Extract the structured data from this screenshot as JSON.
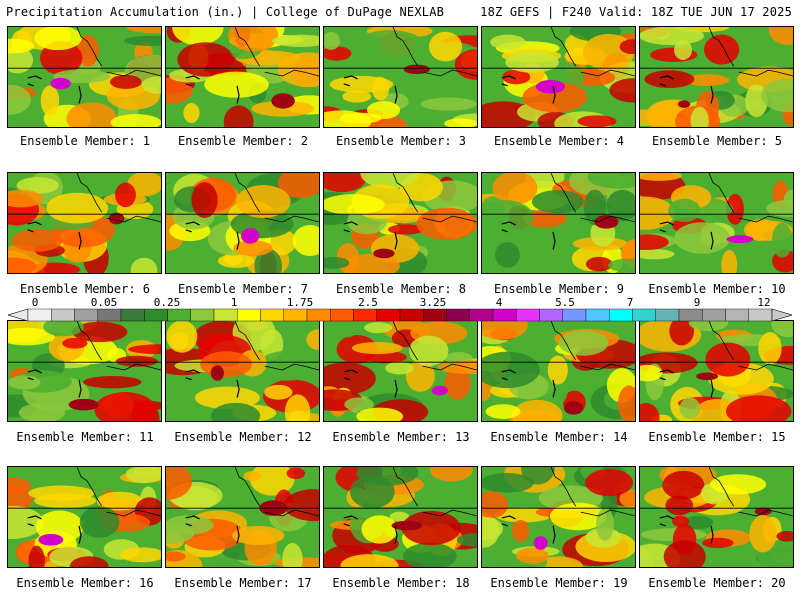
{
  "header": {
    "title": "Precipitation Accumulation (in.) | College of DuPage NEXLAB",
    "valid": "18Z GEFS | F240 Valid: 18Z TUE JUN 17 2025"
  },
  "panels": [
    {
      "label": "Ensemble Member: 1"
    },
    {
      "label": "Ensemble Member: 2"
    },
    {
      "label": "Ensemble Member: 3"
    },
    {
      "label": "Ensemble Member: 4"
    },
    {
      "label": "Ensemble Member: 5"
    },
    {
      "label": "Ensemble Member: 6"
    },
    {
      "label": "Ensemble Member: 7"
    },
    {
      "label": "Ensemble Member: 8"
    },
    {
      "label": "Ensemble Member: 9"
    },
    {
      "label": "Ensemble Member: 10"
    },
    {
      "label": "Ensemble Member: 11"
    },
    {
      "label": "Ensemble Member: 12"
    },
    {
      "label": "Ensemble Member: 13"
    },
    {
      "label": "Ensemble Member: 14"
    },
    {
      "label": "Ensemble Member: 15"
    },
    {
      "label": "Ensemble Member: 16"
    },
    {
      "label": "Ensemble Member: 17"
    },
    {
      "label": "Ensemble Member: 18"
    },
    {
      "label": "Ensemble Member: 19"
    },
    {
      "label": "Ensemble Member: 20"
    }
  ],
  "colorbar": {
    "labels": [
      "0",
      "0.05",
      "0.25",
      "1",
      "1.75",
      "2.5",
      "3.25",
      "4",
      "5.5",
      "7",
      "9",
      "12"
    ],
    "colors": [
      "#f0f0f0",
      "#c8c8c8",
      "#a0a0a0",
      "#787878",
      "#3c7a3c",
      "#2e8b2e",
      "#4caf32",
      "#8cc83c",
      "#c8e632",
      "#ffff00",
      "#ffd700",
      "#ffb400",
      "#ff8c00",
      "#ff5a00",
      "#ff2800",
      "#e60000",
      "#c80000",
      "#a00014",
      "#8c0050",
      "#b4008c",
      "#d200c8",
      "#e632ff",
      "#b464ff",
      "#7896ff",
      "#50c8ff",
      "#00ffff",
      "#32d2d2",
      "#64b4b4",
      "#8c8c8c",
      "#a0a0a0",
      "#b4b4b4",
      "#c8c8c8"
    ]
  }
}
